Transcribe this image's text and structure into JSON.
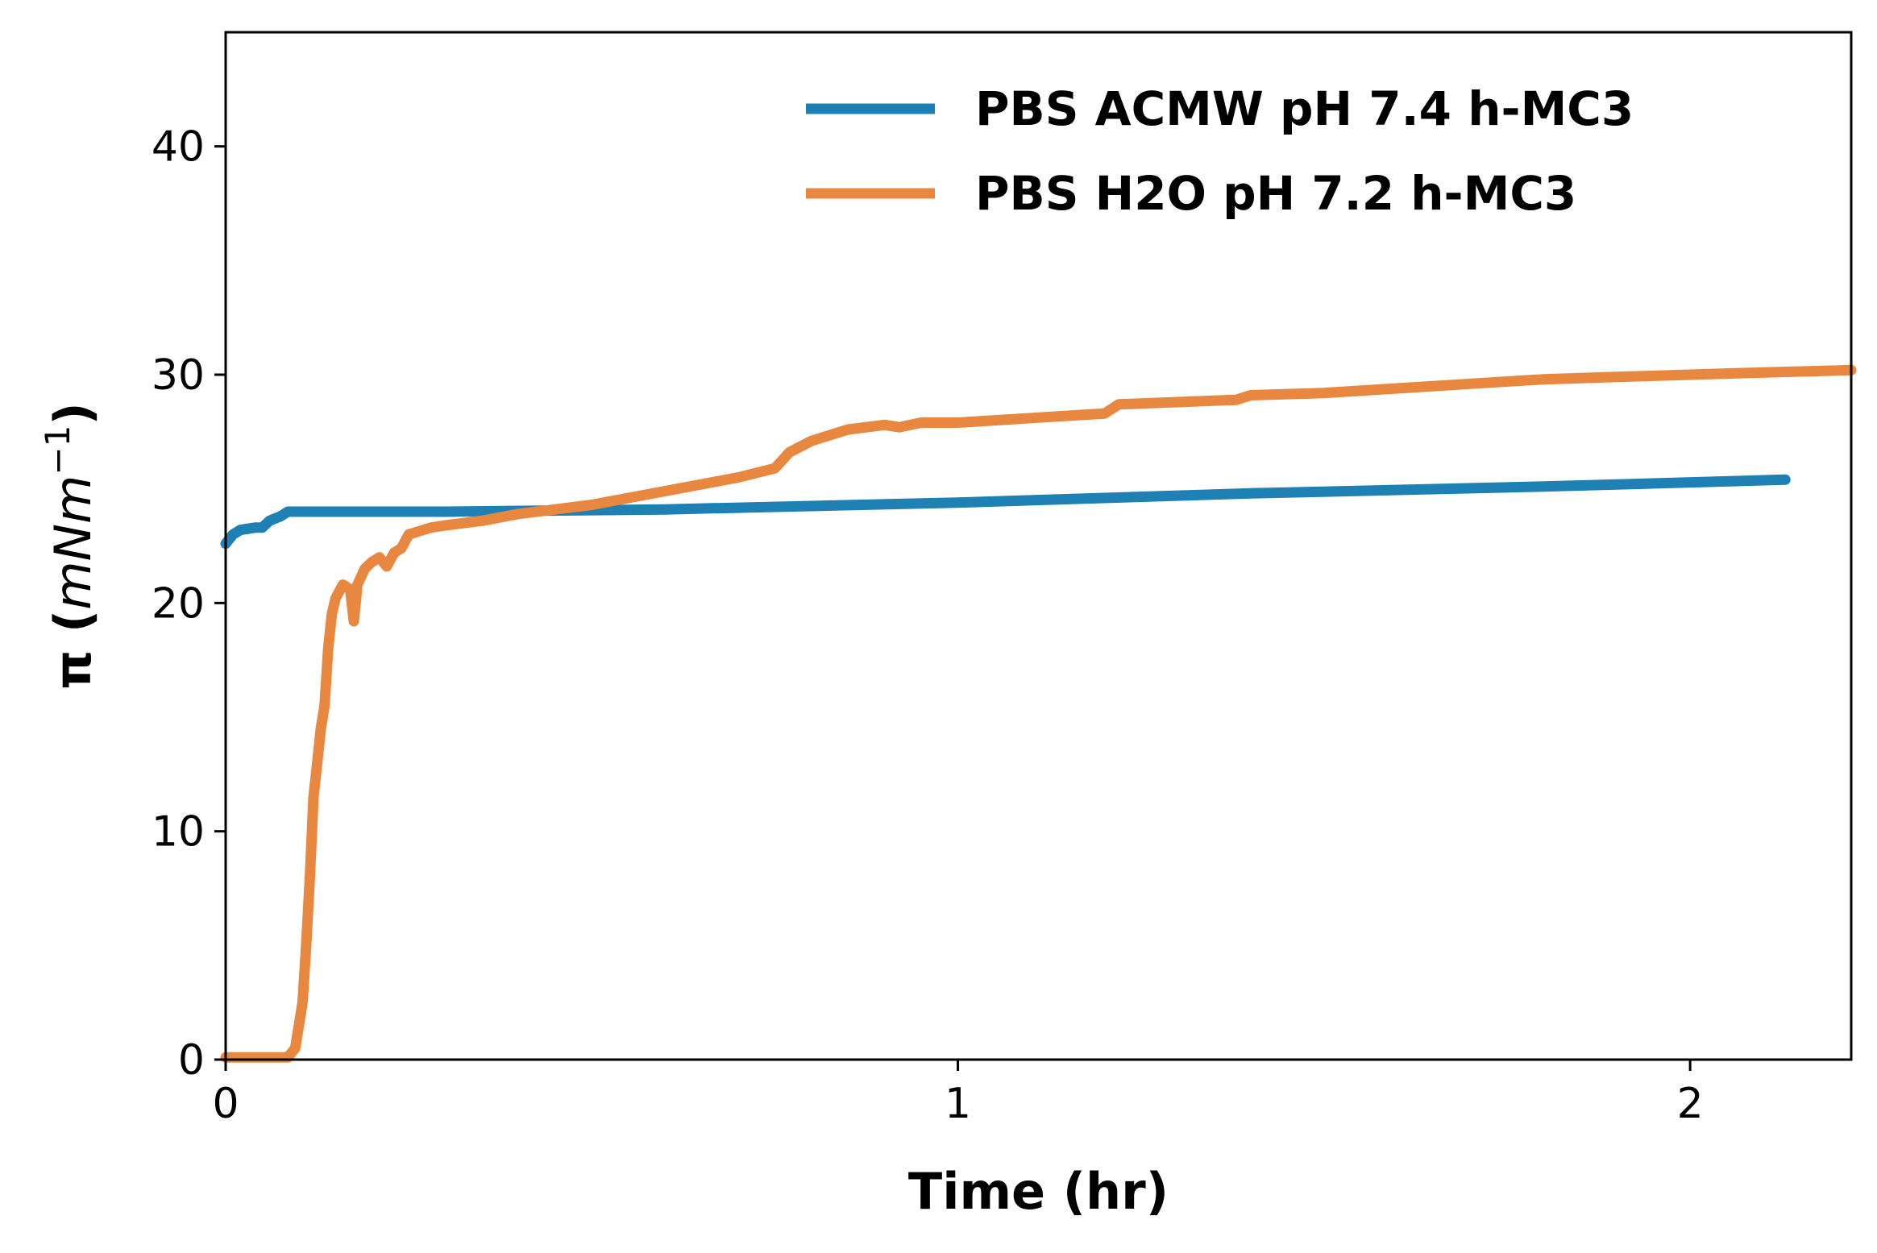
{
  "chart_data": {
    "type": "line",
    "xlabel": "Time (hr)",
    "ylabel_prefix": "π (",
    "ylabel_unit": "mNm",
    "ylabel_exponent": "−1",
    "ylabel_suffix": ")",
    "xlim": [
      0,
      2.22
    ],
    "ylim": [
      0,
      45
    ],
    "xticks": [
      0,
      1,
      2
    ],
    "yticks": [
      0,
      10,
      20,
      30,
      40
    ],
    "grid": false,
    "legend_position": "top-right",
    "series": [
      {
        "name": "PBS ACMW pH 7.4 h-MC3",
        "color": "#1f80b4",
        "points": [
          [
            0,
            22.6
          ],
          [
            0.01,
            23.0
          ],
          [
            0.02,
            23.2
          ],
          [
            0.04,
            23.3
          ],
          [
            0.05,
            23.3
          ],
          [
            0.06,
            23.6
          ],
          [
            0.075,
            23.8
          ],
          [
            0.085,
            24.0
          ],
          [
            0.1,
            24.0
          ],
          [
            0.3,
            24.0
          ],
          [
            0.6,
            24.1
          ],
          [
            1.0,
            24.4
          ],
          [
            1.4,
            24.8
          ],
          [
            1.8,
            25.1
          ],
          [
            2.13,
            25.4
          ]
        ]
      },
      {
        "name": "PBS H2O pH 7.2 h-MC3",
        "color": "#e8873f",
        "points": [
          [
            0,
            0.1
          ],
          [
            0.085,
            0.1
          ],
          [
            0.095,
            0.5
          ],
          [
            0.105,
            2.5
          ],
          [
            0.11,
            5.0
          ],
          [
            0.115,
            8.0
          ],
          [
            0.12,
            11.5
          ],
          [
            0.125,
            13.0
          ],
          [
            0.13,
            14.5
          ],
          [
            0.135,
            15.5
          ],
          [
            0.14,
            18.0
          ],
          [
            0.145,
            19.5
          ],
          [
            0.15,
            20.2
          ],
          [
            0.16,
            20.8
          ],
          [
            0.17,
            20.6
          ],
          [
            0.175,
            19.2
          ],
          [
            0.18,
            20.8
          ],
          [
            0.19,
            21.5
          ],
          [
            0.2,
            21.8
          ],
          [
            0.21,
            22.0
          ],
          [
            0.22,
            21.6
          ],
          [
            0.23,
            22.2
          ],
          [
            0.24,
            22.4
          ],
          [
            0.25,
            23.0
          ],
          [
            0.28,
            23.3
          ],
          [
            0.3,
            23.4
          ],
          [
            0.35,
            23.6
          ],
          [
            0.4,
            23.9
          ],
          [
            0.45,
            24.1
          ],
          [
            0.5,
            24.3
          ],
          [
            0.55,
            24.6
          ],
          [
            0.6,
            24.9
          ],
          [
            0.65,
            25.2
          ],
          [
            0.7,
            25.5
          ],
          [
            0.75,
            25.9
          ],
          [
            0.77,
            26.6
          ],
          [
            0.8,
            27.1
          ],
          [
            0.85,
            27.6
          ],
          [
            0.9,
            27.8
          ],
          [
            0.92,
            27.7
          ],
          [
            0.95,
            27.9
          ],
          [
            1.0,
            27.9
          ],
          [
            1.1,
            28.1
          ],
          [
            1.2,
            28.3
          ],
          [
            1.22,
            28.7
          ],
          [
            1.3,
            28.8
          ],
          [
            1.38,
            28.9
          ],
          [
            1.4,
            29.1
          ],
          [
            1.5,
            29.2
          ],
          [
            1.6,
            29.4
          ],
          [
            1.7,
            29.6
          ],
          [
            1.8,
            29.8
          ],
          [
            1.9,
            29.9
          ],
          [
            2.0,
            30.0
          ],
          [
            2.1,
            30.1
          ],
          [
            2.22,
            30.2
          ]
        ]
      }
    ]
  }
}
